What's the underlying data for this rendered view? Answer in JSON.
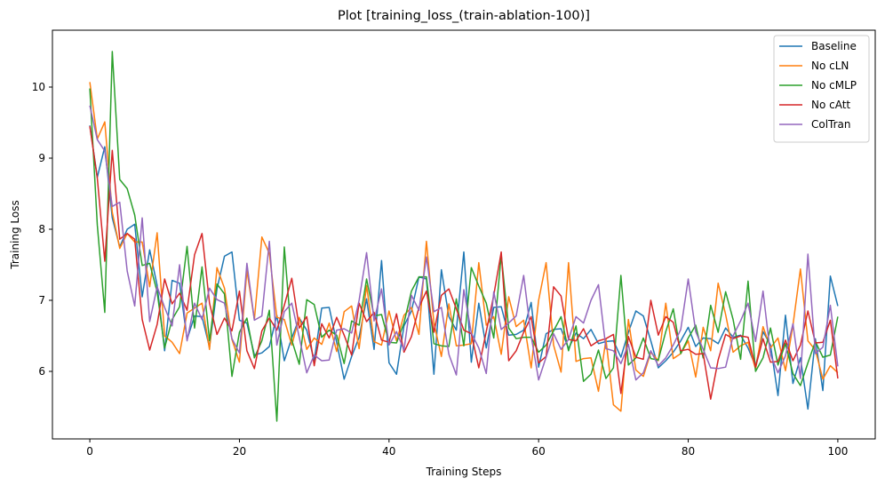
{
  "chart_data": {
    "type": "line",
    "title": "Plot [training_loss_(train-ablation-100)]",
    "xlabel": "Training Steps",
    "ylabel": "Training Loss",
    "xlim": [
      -5,
      105
    ],
    "ylim": [
      5.05,
      10.8
    ],
    "xticks": [
      0,
      20,
      40,
      60,
      80,
      100
    ],
    "yticks": [
      6,
      7,
      8,
      9,
      10
    ],
    "grid": false,
    "legend_position": "top-right",
    "x": [
      0,
      1,
      2,
      3,
      4,
      5,
      6,
      7,
      8,
      9,
      10,
      11,
      12,
      13,
      14,
      15,
      16,
      17,
      18,
      19,
      20,
      21,
      22,
      23,
      24,
      25,
      26,
      27,
      28,
      29,
      30,
      31,
      32,
      33,
      34,
      35,
      36,
      37,
      38,
      39,
      40,
      41,
      42,
      43,
      44,
      45,
      46,
      47,
      48,
      49,
      50,
      51,
      52,
      53,
      54,
      55,
      56,
      57,
      58,
      59,
      60,
      61,
      62,
      63,
      64,
      65,
      66,
      67,
      68,
      69,
      70,
      71,
      72,
      73,
      74,
      75,
      76,
      77,
      78,
      79,
      80,
      81,
      82,
      83,
      84,
      85,
      86,
      87,
      88,
      89,
      90,
      91,
      92,
      93,
      94,
      95,
      96,
      97,
      98,
      99,
      100
    ],
    "series": [
      {
        "name": "Baseline",
        "color": "#1f77b4",
        "values": [
          9.46,
          8.73,
          9.16,
          8.16,
          7.75,
          8.0,
          8.07,
          7.05,
          7.71,
          7.21,
          6.29,
          7.28,
          7.24,
          6.45,
          6.78,
          6.77,
          6.34,
          7.16,
          7.62,
          7.68,
          6.72,
          6.68,
          6.23,
          6.26,
          6.35,
          6.79,
          6.15,
          6.47,
          6.75,
          6.58,
          6.15,
          6.89,
          6.9,
          6.41,
          5.89,
          6.21,
          6.48,
          7.02,
          6.31,
          7.56,
          6.12,
          5.96,
          6.64,
          6.85,
          7.33,
          7.3,
          5.96,
          7.43,
          6.77,
          6.58,
          7.68,
          6.13,
          6.96,
          6.33,
          6.9,
          6.91,
          6.51,
          6.52,
          6.58,
          6.97,
          6.06,
          6.53,
          6.59,
          6.6,
          6.32,
          6.54,
          6.46,
          6.59,
          6.39,
          6.42,
          6.43,
          6.2,
          6.55,
          6.85,
          6.78,
          6.43,
          6.05,
          6.15,
          6.27,
          6.43,
          6.62,
          6.35,
          6.47,
          6.46,
          6.39,
          6.61,
          6.48,
          6.51,
          6.33,
          6.07,
          6.56,
          6.37,
          5.66,
          6.79,
          5.83,
          6.19,
          5.47,
          6.46,
          5.73,
          7.34,
          6.92
        ]
      },
      {
        "name": "No cLN",
        "color": "#ff7f0e",
        "values": [
          10.07,
          9.27,
          9.51,
          8.24,
          7.73,
          7.94,
          7.82,
          7.82,
          7.19,
          7.95,
          6.5,
          6.41,
          6.25,
          6.82,
          6.89,
          6.96,
          6.31,
          7.46,
          7.17,
          6.45,
          6.13,
          7.42,
          6.73,
          7.89,
          7.66,
          6.76,
          6.73,
          6.37,
          6.76,
          6.31,
          6.47,
          6.38,
          6.68,
          6.28,
          6.84,
          6.92,
          6.32,
          7.21,
          6.42,
          6.37,
          6.85,
          6.43,
          6.79,
          6.9,
          6.52,
          7.83,
          6.68,
          6.21,
          6.95,
          6.36,
          6.37,
          6.39,
          7.53,
          6.65,
          6.77,
          6.24,
          7.05,
          6.63,
          6.72,
          6.05,
          7.0,
          7.53,
          6.37,
          5.99,
          7.53,
          6.14,
          6.18,
          6.19,
          5.72,
          6.45,
          5.53,
          5.44,
          6.73,
          6.02,
          5.93,
          6.27,
          6.15,
          6.96,
          6.18,
          6.25,
          6.43,
          5.92,
          6.62,
          6.29,
          7.24,
          6.8,
          6.27,
          6.36,
          6.41,
          6.03,
          6.63,
          6.33,
          6.47,
          6.01,
          6.65,
          7.44,
          6.43,
          6.3,
          5.89,
          6.08,
          5.98
        ]
      },
      {
        "name": "No cMLP",
        "color": "#2ca02c",
        "values": [
          9.98,
          8.06,
          6.83,
          10.5,
          8.7,
          8.57,
          8.2,
          7.49,
          7.52,
          7.12,
          6.33,
          6.73,
          6.91,
          7.76,
          6.61,
          7.47,
          6.43,
          7.23,
          7.09,
          5.93,
          6.55,
          6.75,
          6.19,
          6.43,
          6.86,
          5.3,
          7.75,
          6.44,
          6.1,
          7.01,
          6.94,
          6.48,
          6.58,
          6.51,
          6.11,
          6.71,
          6.65,
          7.3,
          6.78,
          6.8,
          6.41,
          6.4,
          6.68,
          7.13,
          7.33,
          7.33,
          6.39,
          6.36,
          6.35,
          7.02,
          6.36,
          7.46,
          7.2,
          6.96,
          6.47,
          7.64,
          6.61,
          6.46,
          6.48,
          6.48,
          6.27,
          6.37,
          6.57,
          6.77,
          6.29,
          6.64,
          5.86,
          5.96,
          6.3,
          5.9,
          6.05,
          7.35,
          6.09,
          6.19,
          6.47,
          6.18,
          6.16,
          6.56,
          6.88,
          6.25,
          6.47,
          6.65,
          6.19,
          6.93,
          6.55,
          7.12,
          6.73,
          6.17,
          7.27,
          6.0,
          6.19,
          6.61,
          6.09,
          6.39,
          5.97,
          5.8,
          6.12,
          6.42,
          6.2,
          6.23,
          6.77
        ]
      },
      {
        "name": "No cAtt",
        "color": "#d62728",
        "values": [
          9.45,
          8.72,
          7.55,
          9.11,
          7.86,
          7.94,
          7.86,
          6.73,
          6.3,
          6.66,
          7.3,
          6.95,
          7.1,
          6.86,
          7.64,
          7.94,
          6.96,
          6.52,
          6.75,
          6.57,
          7.13,
          6.29,
          6.04,
          6.57,
          6.75,
          6.58,
          6.93,
          7.31,
          6.61,
          6.77,
          6.08,
          6.67,
          6.47,
          6.76,
          6.51,
          6.23,
          6.96,
          6.7,
          6.83,
          6.44,
          6.41,
          6.81,
          6.27,
          6.49,
          6.9,
          7.13,
          6.55,
          7.07,
          7.16,
          6.88,
          6.58,
          6.53,
          6.05,
          6.56,
          7.07,
          7.68,
          6.15,
          6.29,
          6.55,
          6.77,
          6.12,
          6.21,
          7.19,
          7.06,
          6.45,
          6.43,
          6.6,
          6.36,
          6.43,
          6.46,
          6.52,
          5.69,
          6.49,
          6.2,
          6.17,
          7.0,
          6.51,
          6.77,
          6.69,
          6.29,
          6.31,
          6.24,
          6.25,
          5.61,
          6.16,
          6.52,
          6.46,
          6.5,
          6.48,
          6.06,
          6.46,
          6.13,
          6.14,
          6.44,
          6.15,
          6.37,
          6.85,
          6.4,
          6.41,
          6.72,
          5.9
        ]
      },
      {
        "name": "ColTran",
        "color": "#9467bd",
        "values": [
          9.74,
          9.26,
          9.1,
          8.32,
          8.38,
          7.41,
          6.92,
          8.16,
          6.7,
          7.19,
          6.9,
          6.64,
          7.5,
          6.43,
          6.96,
          6.73,
          7.17,
          7.01,
          6.96,
          6.46,
          6.26,
          7.52,
          6.72,
          6.78,
          7.83,
          6.37,
          6.84,
          6.96,
          6.48,
          5.98,
          6.23,
          6.15,
          6.16,
          6.58,
          6.6,
          6.54,
          7.0,
          7.67,
          6.71,
          7.16,
          6.37,
          6.56,
          6.3,
          7.07,
          6.86,
          7.61,
          6.84,
          6.9,
          6.24,
          5.95,
          7.15,
          6.54,
          6.33,
          5.97,
          7.12,
          6.59,
          6.68,
          6.78,
          7.35,
          6.5,
          5.88,
          6.2,
          6.53,
          6.31,
          6.45,
          6.77,
          6.68,
          7.0,
          7.22,
          6.32,
          6.29,
          6.11,
          6.38,
          5.88,
          5.98,
          6.29,
          6.08,
          6.19,
          6.37,
          6.59,
          7.3,
          6.56,
          6.31,
          6.05,
          6.04,
          6.06,
          6.5,
          6.71,
          6.96,
          6.42,
          7.13,
          6.23,
          5.98,
          6.22,
          6.67,
          5.9,
          7.65,
          6.25,
          6.34,
          6.93,
          6.07
        ]
      }
    ]
  }
}
